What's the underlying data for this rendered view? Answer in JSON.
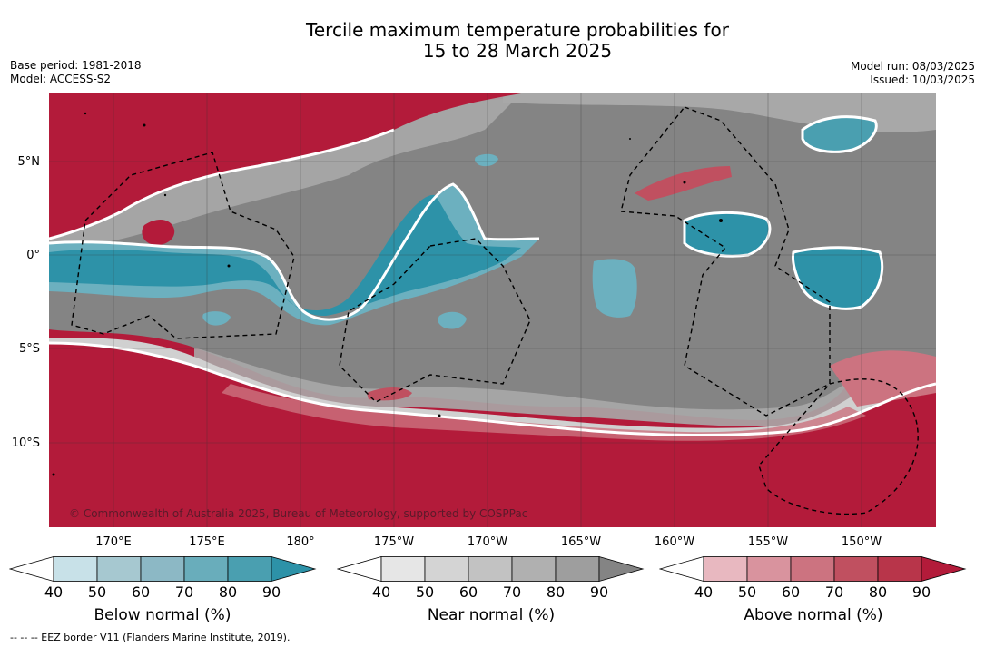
{
  "title_line1": "Tercile maximum temperature probabilities for",
  "title_line2": "15 to 28 March 2025",
  "base_period": "Base period: 1981-2018",
  "model": "Model: ACCESS-S2",
  "model_run": "Model run: 08/03/2025",
  "issued": "Issued: 10/03/2025",
  "copyright": "© Commonwealth of Australia 2025, Bureau of Meteorology, supported by COSPPac",
  "lat_labels": [
    "5°N",
    "0°",
    "5°S",
    "10°S"
  ],
  "lon_labels": [
    "170°E",
    "175°E",
    "180°",
    "175°W",
    "170°W",
    "165°W",
    "160°W",
    "155°W",
    "150°W"
  ],
  "colorbars": [
    {
      "label": "Below normal (%)",
      "ticks": [
        "40",
        "50",
        "60",
        "70",
        "80",
        "90"
      ],
      "colors": [
        "#ffffff",
        "#c8e1e8",
        "#a6c8d0",
        "#8cb8c5",
        "#69adbb",
        "#4a9fb0",
        "#2d92a8"
      ]
    },
    {
      "label": "Near normal (%)",
      "ticks": [
        "40",
        "50",
        "60",
        "70",
        "80",
        "90"
      ],
      "colors": [
        "#ffffff",
        "#e6e6e6",
        "#d4d4d4",
        "#c2c2c2",
        "#b0b0b0",
        "#9e9e9e",
        "#848484"
      ]
    },
    {
      "label": "Above normal (%)",
      "ticks": [
        "40",
        "50",
        "60",
        "70",
        "80",
        "90"
      ],
      "colors": [
        "#ffffff",
        "#e8b8c0",
        "#d9939e",
        "#cc7380",
        "#c05060",
        "#b8354a",
        "#b31b3a"
      ]
    }
  ],
  "eez_note": "--  --  -- EEZ border V11 (Flanders Marine Institute, 2019).",
  "colors": {
    "above": "#b31b3a",
    "near_dark": "#848484",
    "near_mid": "#a8a8a8",
    "near_light": "#d0d0d0",
    "below": "#2d92a8",
    "below_light": "#6cb0bf"
  }
}
